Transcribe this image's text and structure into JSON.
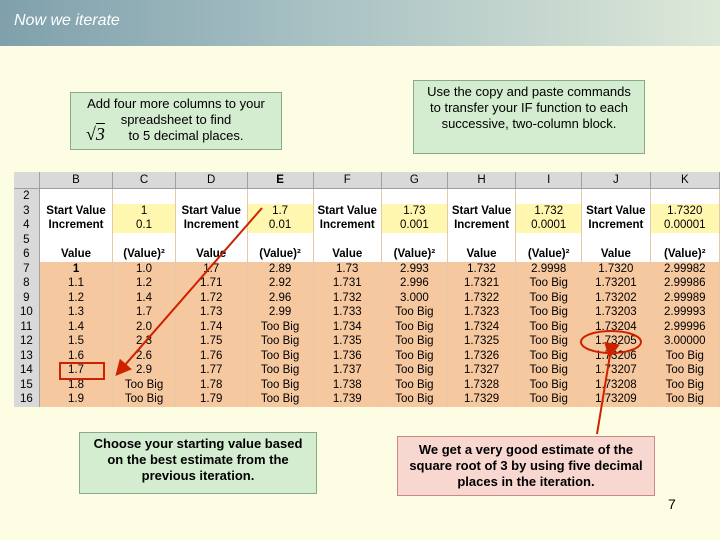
{
  "title": "Now we iterate",
  "callouts": {
    "top_left": "Add four more columns to your spreadsheet to find",
    "top_left_end": "to 5 decimal places.",
    "sqrt_symbol": "√",
    "sqrt_radicand": "3",
    "top_right": "Use the copy and paste commands to transfer your IF function to each successive, two-column block.",
    "bottom_left": "Choose your starting value based on the best estimate from the previous iteration.",
    "bottom_right": "We get a very good estimate of the square root of 3 by using five decimal places in the iteration."
  },
  "page_number": "7",
  "sheet": {
    "columns": [
      "",
      "B",
      "C",
      "D",
      "E",
      "F",
      "G",
      "H",
      "I",
      "J",
      "K"
    ],
    "rows": [
      {
        "n": "2",
        "cells": [
          "",
          "",
          "",
          "",
          "",
          "",
          "",
          "",
          "",
          ""
        ]
      },
      {
        "n": "3",
        "cells": [
          "Start Value",
          "1",
          "Start Value",
          "1.7",
          "Start Value",
          "1.73",
          "Start Value",
          "1.732",
          "Start Value",
          "1.7320"
        ]
      },
      {
        "n": "4",
        "cells": [
          "Increment",
          "0.1",
          "Increment",
          "0.01",
          "Increment",
          "0.001",
          "Increment",
          "0.0001",
          "Increment",
          "0.00001"
        ]
      },
      {
        "n": "5",
        "cells": [
          "",
          "",
          "",
          "",
          "",
          "",
          "",
          "",
          "",
          ""
        ]
      },
      {
        "n": "6",
        "cells": [
          "Value",
          "(Value)²",
          "Value",
          "(Value)²",
          "Value",
          "(Value)²",
          "Value",
          "(Value)²",
          "Value",
          "(Value)²"
        ]
      },
      {
        "n": "7",
        "cells": [
          "1",
          "1.0",
          "1.7",
          "2.89",
          "1.73",
          "2.993",
          "1.732",
          "2.9998",
          "1.7320",
          "2.99982"
        ]
      },
      {
        "n": "8",
        "cells": [
          "1.1",
          "1.2",
          "1.71",
          "2.92",
          "1.731",
          "2.996",
          "1.7321",
          "Too Big",
          "1.73201",
          "2.99986"
        ]
      },
      {
        "n": "9",
        "cells": [
          "1.2",
          "1.4",
          "1.72",
          "2.96",
          "1.732",
          "3.000",
          "1.7322",
          "Too Big",
          "1.73202",
          "2.99989"
        ]
      },
      {
        "n": "10",
        "cells": [
          "1.3",
          "1.7",
          "1.73",
          "2.99",
          "1.733",
          "Too Big",
          "1.7323",
          "Too Big",
          "1.73203",
          "2.99993"
        ]
      },
      {
        "n": "11",
        "cells": [
          "1.4",
          "2.0",
          "1.74",
          "Too Big",
          "1.734",
          "Too Big",
          "1.7324",
          "Too Big",
          "1.73204",
          "2.99996"
        ]
      },
      {
        "n": "12",
        "cells": [
          "1.5",
          "2.3",
          "1.75",
          "Too Big",
          "1.735",
          "Too Big",
          "1.7325",
          "Too Big",
          "1.73205",
          "3.00000"
        ]
      },
      {
        "n": "13",
        "cells": [
          "1.6",
          "2.6",
          "1.76",
          "Too Big",
          "1.736",
          "Too Big",
          "1.7326",
          "Too Big",
          "1.73206",
          "Too Big"
        ]
      },
      {
        "n": "14",
        "cells": [
          "1.7",
          "2.9",
          "1.77",
          "Too Big",
          "1.737",
          "Too Big",
          "1.7327",
          "Too Big",
          "1.73207",
          "Too Big"
        ]
      },
      {
        "n": "15",
        "cells": [
          "1.8",
          "Too Big",
          "1.78",
          "Too Big",
          "1.738",
          "Too Big",
          "1.7328",
          "Too Big",
          "1.73208",
          "Too Big"
        ]
      },
      {
        "n": "16",
        "cells": [
          "1.9",
          "Too Big",
          "1.79",
          "Too Big",
          "1.739",
          "Too Big",
          "1.7329",
          "Too Big",
          "1.73209",
          "Too Big"
        ]
      }
    ]
  },
  "colors": {
    "accent_ellipse": "#cc2200",
    "arrow": "#cc2200",
    "data_fill": "#f6c8a0",
    "input_fill": "#fff6b0",
    "callout_green": "#d4ecd0",
    "callout_pink": "#f7d7d0"
  }
}
